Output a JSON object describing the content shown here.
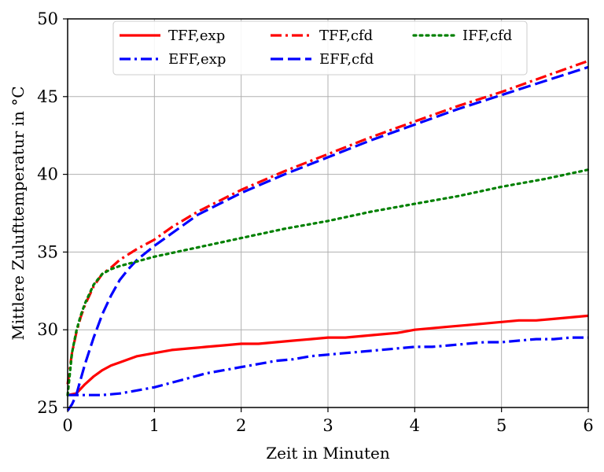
{
  "chart_data": {
    "type": "line",
    "xlabel": "Zeit in Minuten",
    "ylabel": "Mittlere Zulufttemperatur in °C",
    "xlim": [
      0,
      6
    ],
    "ylim": [
      25,
      50
    ],
    "xticks": [
      "0",
      "1",
      "2",
      "3",
      "4",
      "5",
      "6"
    ],
    "yticks": [
      "25",
      "30",
      "35",
      "40",
      "45",
      "50"
    ],
    "grid": true,
    "legend_position": "top-center",
    "series": [
      {
        "name": "TFF,exp",
        "color": "#ff0000",
        "dash": "solid",
        "x": [
          0,
          0.1,
          0.2,
          0.3,
          0.4,
          0.5,
          0.6,
          0.7,
          0.8,
          0.9,
          1.0,
          1.2,
          1.4,
          1.6,
          1.8,
          2.0,
          2.2,
          2.4,
          2.6,
          2.8,
          3.0,
          3.2,
          3.4,
          3.6,
          3.8,
          4.0,
          4.2,
          4.4,
          4.6,
          4.8,
          5.0,
          5.2,
          5.4,
          5.6,
          5.8,
          6.0
        ],
        "y": [
          25.8,
          25.9,
          26.5,
          27.0,
          27.4,
          27.7,
          27.9,
          28.1,
          28.3,
          28.4,
          28.5,
          28.7,
          28.8,
          28.9,
          29.0,
          29.1,
          29.1,
          29.2,
          29.3,
          29.4,
          29.5,
          29.5,
          29.6,
          29.7,
          29.8,
          30.0,
          30.1,
          30.2,
          30.3,
          30.4,
          30.5,
          30.6,
          30.6,
          30.7,
          30.8,
          30.9
        ]
      },
      {
        "name": "EFF,exp",
        "color": "#0000ff",
        "dash": "dashdot",
        "x": [
          0,
          0.2,
          0.4,
          0.5,
          0.6,
          0.8,
          1.0,
          1.2,
          1.4,
          1.6,
          1.8,
          2.0,
          2.2,
          2.4,
          2.6,
          2.8,
          3.0,
          3.2,
          3.4,
          3.6,
          3.8,
          4.0,
          4.2,
          4.4,
          4.6,
          4.8,
          5.0,
          5.2,
          5.4,
          5.6,
          5.8,
          6.0
        ],
        "y": [
          25.8,
          25.8,
          25.8,
          25.85,
          25.9,
          26.1,
          26.3,
          26.6,
          26.9,
          27.2,
          27.4,
          27.6,
          27.8,
          28.0,
          28.1,
          28.3,
          28.4,
          28.5,
          28.6,
          28.7,
          28.8,
          28.9,
          28.9,
          29.0,
          29.1,
          29.2,
          29.2,
          29.3,
          29.4,
          29.4,
          29.5,
          29.5
        ]
      },
      {
        "name": "TFF,cfd",
        "color": "#ff0000",
        "dash": "dashdot",
        "x": [
          0,
          0.05,
          0.1,
          0.15,
          0.2,
          0.3,
          0.4,
          0.5,
          0.6,
          0.8,
          1.0,
          1.2,
          1.5,
          2.0,
          2.5,
          3.0,
          3.5,
          4.0,
          4.5,
          5.0,
          5.5,
          6.0
        ],
        "y": [
          26.5,
          28.5,
          29.8,
          30.8,
          31.6,
          32.8,
          33.6,
          34.0,
          34.5,
          35.2,
          35.8,
          36.6,
          37.6,
          39.0,
          40.2,
          41.3,
          42.4,
          43.4,
          44.4,
          45.3,
          46.3,
          47.3
        ]
      },
      {
        "name": "EFF,cfd",
        "color": "#0000ff",
        "dash": "dashed",
        "x": [
          0,
          0.05,
          0.1,
          0.15,
          0.2,
          0.3,
          0.4,
          0.5,
          0.6,
          0.7,
          0.8,
          1.0,
          1.2,
          1.5,
          2.0,
          2.5,
          3.0,
          3.5,
          4.0,
          4.5,
          5.0,
          5.5,
          6.0
        ],
        "y": [
          24.8,
          25.2,
          25.8,
          26.8,
          27.8,
          29.5,
          31.0,
          32.2,
          33.2,
          33.9,
          34.5,
          35.4,
          36.2,
          37.4,
          38.8,
          40.0,
          41.1,
          42.2,
          43.2,
          44.2,
          45.1,
          46.0,
          46.9
        ]
      },
      {
        "name": "IFF,cfd",
        "color": "#008000",
        "dash": "dotted",
        "x": [
          0,
          0.05,
          0.1,
          0.15,
          0.2,
          0.3,
          0.4,
          0.5,
          0.6,
          0.8,
          1.0,
          1.5,
          2.0,
          2.5,
          3.0,
          3.5,
          4.0,
          4.5,
          5.0,
          5.5,
          6.0
        ],
        "y": [
          25.8,
          28.5,
          29.9,
          30.9,
          31.7,
          32.9,
          33.6,
          33.9,
          34.1,
          34.4,
          34.7,
          35.3,
          35.9,
          36.5,
          37.0,
          37.6,
          38.1,
          38.6,
          39.2,
          39.7,
          40.3
        ]
      }
    ]
  }
}
